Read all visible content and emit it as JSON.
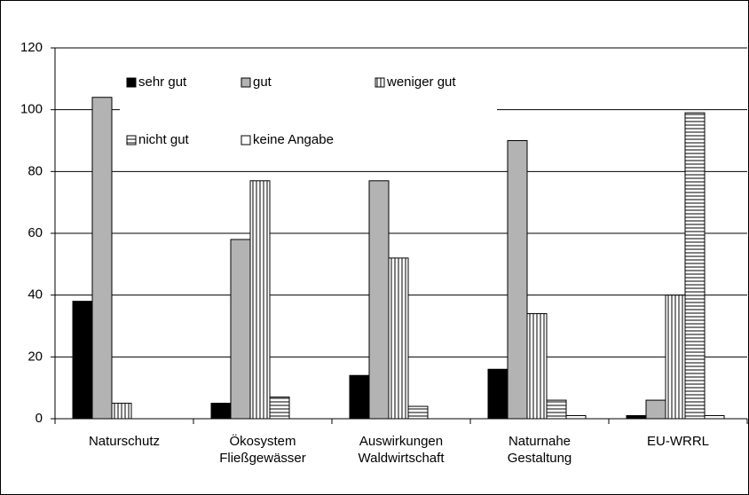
{
  "chart_data": {
    "type": "bar",
    "categories": [
      "Naturschutz",
      "Ökosystem\nFließgewässer",
      "Auswirkungen\nWaldwirtschaft",
      "Naturnahe\nGestaltung",
      "EU-WRRL"
    ],
    "series": [
      {
        "name": "sehr gut",
        "color": "#000000",
        "pattern": "solid",
        "values": [
          38,
          5,
          14,
          16,
          1
        ]
      },
      {
        "name": "gut",
        "color": "#b3b3b3",
        "pattern": "solid",
        "values": [
          104,
          58,
          77,
          90,
          6
        ]
      },
      {
        "name": "weniger gut",
        "color": "#000000",
        "pattern": "vertical",
        "values": [
          5,
          77,
          52,
          34,
          40
        ]
      },
      {
        "name": "nicht gut",
        "color": "#000000",
        "pattern": "horizontal",
        "values": [
          0,
          7,
          4,
          6,
          99
        ]
      },
      {
        "name": "keine Angabe",
        "color": "#ffffff",
        "pattern": "solid",
        "values": [
          0,
          0,
          0,
          1,
          1
        ]
      }
    ],
    "ylim": [
      0,
      120
    ],
    "yticks": [
      0,
      20,
      40,
      60,
      80,
      100,
      120
    ],
    "grid": true,
    "legend": "top-left"
  }
}
